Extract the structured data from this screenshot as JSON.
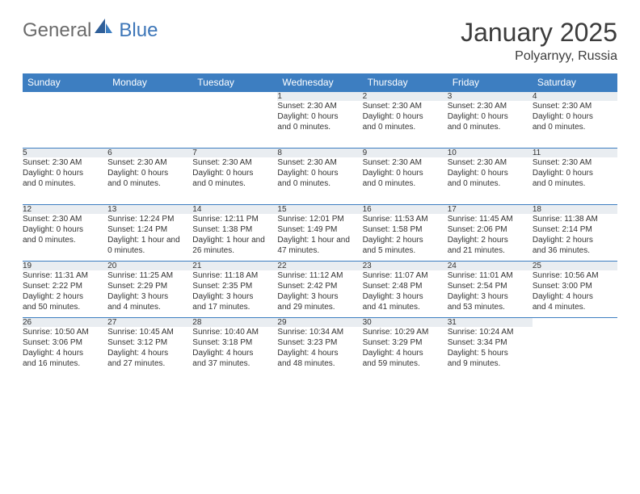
{
  "brand": {
    "part1": "General",
    "part2": "Blue"
  },
  "title": "January 2025",
  "location": "Polyarnyy, Russia",
  "colors": {
    "header_bg": "#3d7ec1",
    "header_text": "#ffffff",
    "daynum_bg": "#e9edf1",
    "border": "#3d7ec1",
    "title_text": "#3c3c3c",
    "logo_gray": "#6b6b6b",
    "logo_blue": "#3d76b8",
    "body_text": "#333333",
    "page_bg": "#ffffff"
  },
  "typography": {
    "title_fontsize": 32,
    "subtitle_fontsize": 16,
    "weekday_fontsize": 12,
    "daynum_fontsize": 11,
    "cell_fontsize": 10
  },
  "weekdays": [
    "Sunday",
    "Monday",
    "Tuesday",
    "Wednesday",
    "Thursday",
    "Friday",
    "Saturday"
  ],
  "weeks": [
    {
      "nums": [
        "",
        "",
        "",
        "1",
        "2",
        "3",
        "4"
      ],
      "cells": [
        [],
        [],
        [],
        [
          "Sunset: 2:30 AM",
          "Daylight: 0 hours",
          "and 0 minutes."
        ],
        [
          "Sunset: 2:30 AM",
          "Daylight: 0 hours",
          "and 0 minutes."
        ],
        [
          "Sunset: 2:30 AM",
          "Daylight: 0 hours",
          "and 0 minutes."
        ],
        [
          "Sunset: 2:30 AM",
          "Daylight: 0 hours",
          "and 0 minutes."
        ]
      ]
    },
    {
      "nums": [
        "5",
        "6",
        "7",
        "8",
        "9",
        "10",
        "11"
      ],
      "cells": [
        [
          "Sunset: 2:30 AM",
          "Daylight: 0 hours",
          "and 0 minutes."
        ],
        [
          "Sunset: 2:30 AM",
          "Daylight: 0 hours",
          "and 0 minutes."
        ],
        [
          "Sunset: 2:30 AM",
          "Daylight: 0 hours",
          "and 0 minutes."
        ],
        [
          "Sunset: 2:30 AM",
          "Daylight: 0 hours",
          "and 0 minutes."
        ],
        [
          "Sunset: 2:30 AM",
          "Daylight: 0 hours",
          "and 0 minutes."
        ],
        [
          "Sunset: 2:30 AM",
          "Daylight: 0 hours",
          "and 0 minutes."
        ],
        [
          "Sunset: 2:30 AM",
          "Daylight: 0 hours",
          "and 0 minutes."
        ]
      ]
    },
    {
      "nums": [
        "12",
        "13",
        "14",
        "15",
        "16",
        "17",
        "18"
      ],
      "cells": [
        [
          "Sunset: 2:30 AM",
          "Daylight: 0 hours",
          "and 0 minutes."
        ],
        [
          "Sunrise: 12:24 PM",
          "Sunset: 1:24 PM",
          "Daylight: 1 hour and",
          "0 minutes."
        ],
        [
          "Sunrise: 12:11 PM",
          "Sunset: 1:38 PM",
          "Daylight: 1 hour and",
          "26 minutes."
        ],
        [
          "Sunrise: 12:01 PM",
          "Sunset: 1:49 PM",
          "Daylight: 1 hour and",
          "47 minutes."
        ],
        [
          "Sunrise: 11:53 AM",
          "Sunset: 1:58 PM",
          "Daylight: 2 hours",
          "and 5 minutes."
        ],
        [
          "Sunrise: 11:45 AM",
          "Sunset: 2:06 PM",
          "Daylight: 2 hours",
          "and 21 minutes."
        ],
        [
          "Sunrise: 11:38 AM",
          "Sunset: 2:14 PM",
          "Daylight: 2 hours",
          "and 36 minutes."
        ]
      ]
    },
    {
      "nums": [
        "19",
        "20",
        "21",
        "22",
        "23",
        "24",
        "25"
      ],
      "cells": [
        [
          "Sunrise: 11:31 AM",
          "Sunset: 2:22 PM",
          "Daylight: 2 hours",
          "and 50 minutes."
        ],
        [
          "Sunrise: 11:25 AM",
          "Sunset: 2:29 PM",
          "Daylight: 3 hours",
          "and 4 minutes."
        ],
        [
          "Sunrise: 11:18 AM",
          "Sunset: 2:35 PM",
          "Daylight: 3 hours",
          "and 17 minutes."
        ],
        [
          "Sunrise: 11:12 AM",
          "Sunset: 2:42 PM",
          "Daylight: 3 hours",
          "and 29 minutes."
        ],
        [
          "Sunrise: 11:07 AM",
          "Sunset: 2:48 PM",
          "Daylight: 3 hours",
          "and 41 minutes."
        ],
        [
          "Sunrise: 11:01 AM",
          "Sunset: 2:54 PM",
          "Daylight: 3 hours",
          "and 53 minutes."
        ],
        [
          "Sunrise: 10:56 AM",
          "Sunset: 3:00 PM",
          "Daylight: 4 hours",
          "and 4 minutes."
        ]
      ]
    },
    {
      "nums": [
        "26",
        "27",
        "28",
        "29",
        "30",
        "31",
        ""
      ],
      "cells": [
        [
          "Sunrise: 10:50 AM",
          "Sunset: 3:06 PM",
          "Daylight: 4 hours",
          "and 16 minutes."
        ],
        [
          "Sunrise: 10:45 AM",
          "Sunset: 3:12 PM",
          "Daylight: 4 hours",
          "and 27 minutes."
        ],
        [
          "Sunrise: 10:40 AM",
          "Sunset: 3:18 PM",
          "Daylight: 4 hours",
          "and 37 minutes."
        ],
        [
          "Sunrise: 10:34 AM",
          "Sunset: 3:23 PM",
          "Daylight: 4 hours",
          "and 48 minutes."
        ],
        [
          "Sunrise: 10:29 AM",
          "Sunset: 3:29 PM",
          "Daylight: 4 hours",
          "and 59 minutes."
        ],
        [
          "Sunrise: 10:24 AM",
          "Sunset: 3:34 PM",
          "Daylight: 5 hours",
          "and 9 minutes."
        ],
        []
      ]
    }
  ]
}
